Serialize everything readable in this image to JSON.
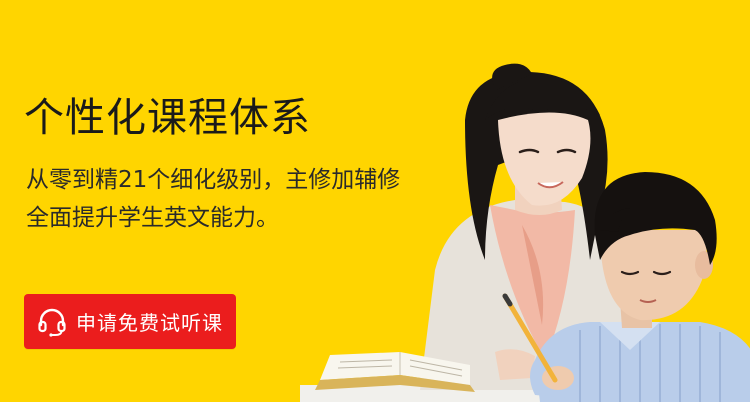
{
  "banner": {
    "title": "个性化课程体系",
    "description": [
      "从零到精21个细化级别，主修加辅修",
      "全面提升学生英文能力。"
    ],
    "cta": {
      "label": "申请免费试听课",
      "icon": "headset-icon"
    },
    "photo": {
      "subject": "teacher-helping-student-illustration"
    },
    "colors": {
      "background": "#FFD500",
      "cta": "#EB1D1D",
      "title": "#1a1a1a",
      "text": "#2a2a2a"
    }
  }
}
